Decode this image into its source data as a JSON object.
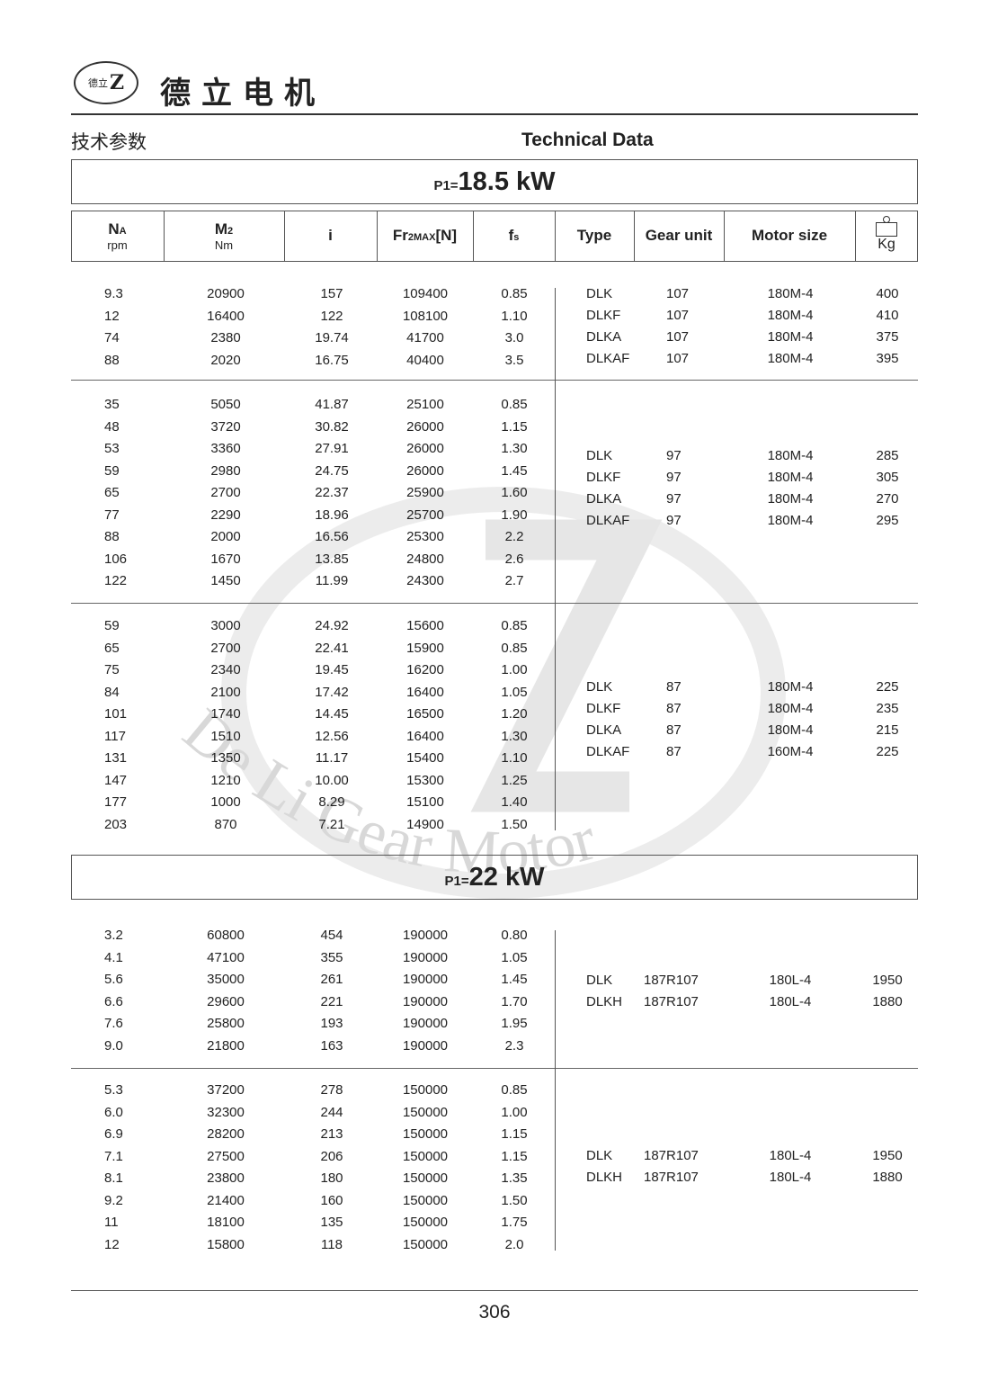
{
  "header": {
    "logo_text": "De Li Gear Motor",
    "logo_chars": "德立",
    "company_name": "德立电机"
  },
  "section": {
    "title_cn": "技术参数",
    "title_en": "Technical Data"
  },
  "columns": {
    "na": "NA",
    "na_sub": "A",
    "na_main": "N",
    "na_unit": "rpm",
    "m2_main": "M",
    "m2_sub": "2",
    "m2_unit": "Nm",
    "i": "i",
    "fr_main": "Fr",
    "fr_sub": "2MAX",
    "fr_unit": "[N]",
    "fs_main": "f",
    "fs_sub": "s",
    "type": "Type",
    "gear_unit": "Gear unit",
    "motor_size": "Motor size",
    "kg": "Kg",
    "weight_icon": "weight-icon"
  },
  "blocks": [
    {
      "power_prefix": "P1=",
      "power_value": "18.5 kW",
      "groups": [
        {
          "rows": [
            [
              "9.3",
              "20900",
              "157",
              "109400",
              "0.85"
            ],
            [
              "12",
              "16400",
              "122",
              "108100",
              "1.10"
            ],
            [
              "74",
              "2380",
              "19.74",
              "41700",
              "3.0"
            ],
            [
              "88",
              "2020",
              "16.75",
              "40400",
              "3.5"
            ]
          ],
          "units": [
            [
              "DLK",
              "107",
              "180M-4",
              "400"
            ],
            [
              "DLKF",
              "107",
              "180M-4",
              "410"
            ],
            [
              "DLKA",
              "107",
              "180M-4",
              "375"
            ],
            [
              "DLKAF",
              "107",
              "180M-4",
              "395"
            ]
          ]
        },
        {
          "rows": [
            [
              "35",
              "5050",
              "41.87",
              "25100",
              "0.85"
            ],
            [
              "48",
              "3720",
              "30.82",
              "26000",
              "1.15"
            ],
            [
              "53",
              "3360",
              "27.91",
              "26000",
              "1.30"
            ],
            [
              "59",
              "2980",
              "24.75",
              "26000",
              "1.45"
            ],
            [
              "65",
              "2700",
              "22.37",
              "25900",
              "1.60"
            ],
            [
              "77",
              "2290",
              "18.96",
              "25700",
              "1.90"
            ],
            [
              "88",
              "2000",
              "16.56",
              "25300",
              "2.2"
            ],
            [
              "106",
              "1670",
              "13.85",
              "24800",
              "2.6"
            ],
            [
              "122",
              "1450",
              "11.99",
              "24300",
              "2.7"
            ]
          ],
          "units": [
            [
              "DLK",
              "97",
              "180M-4",
              "285"
            ],
            [
              "DLKF",
              "97",
              "180M-4",
              "305"
            ],
            [
              "DLKA",
              "97",
              "180M-4",
              "270"
            ],
            [
              "DLKAF",
              "97",
              "180M-4",
              "295"
            ]
          ]
        },
        {
          "rows": [
            [
              "59",
              "3000",
              "24.92",
              "15600",
              "0.85"
            ],
            [
              "65",
              "2700",
              "22.41",
              "15900",
              "0.85"
            ],
            [
              "75",
              "2340",
              "19.45",
              "16200",
              "1.00"
            ],
            [
              "84",
              "2100",
              "17.42",
              "16400",
              "1.05"
            ],
            [
              "101",
              "1740",
              "14.45",
              "16500",
              "1.20"
            ],
            [
              "117",
              "1510",
              "12.56",
              "16400",
              "1.30"
            ],
            [
              "131",
              "1350",
              "11.17",
              "15400",
              "1.10"
            ],
            [
              "147",
              "1210",
              "10.00",
              "15300",
              "1.25"
            ],
            [
              "177",
              "1000",
              "8.29",
              "15100",
              "1.40"
            ],
            [
              "203",
              "870",
              "7.21",
              "14900",
              "1.50"
            ]
          ],
          "units": [
            [
              "DLK",
              "87",
              "180M-4",
              "225"
            ],
            [
              "DLKF",
              "87",
              "180M-4",
              "235"
            ],
            [
              "DLKA",
              "87",
              "180M-4",
              "215"
            ],
            [
              "DLKAF",
              "87",
              "160M-4",
              "225"
            ]
          ]
        }
      ]
    },
    {
      "power_prefix": "P1=",
      "power_value": "22 kW",
      "groups": [
        {
          "rows": [
            [
              "3.2",
              "60800",
              "454",
              "190000",
              "0.80"
            ],
            [
              "4.1",
              "47100",
              "355",
              "190000",
              "1.05"
            ],
            [
              "5.6",
              "35000",
              "261",
              "190000",
              "1.45"
            ],
            [
              "6.6",
              "29600",
              "221",
              "190000",
              "1.70"
            ],
            [
              "7.6",
              "25800",
              "193",
              "190000",
              "1.95"
            ],
            [
              "9.0",
              "21800",
              "163",
              "190000",
              "2.3"
            ]
          ],
          "units": [
            [
              "DLK",
              "187R107",
              "180L-4",
              "1950"
            ],
            [
              "DLKH",
              "187R107",
              "180L-4",
              "1880"
            ]
          ]
        },
        {
          "rows": [
            [
              "5.3",
              "37200",
              "278",
              "150000",
              "0.85"
            ],
            [
              "6.0",
              "32300",
              "244",
              "150000",
              "1.00"
            ],
            [
              "6.9",
              "28200",
              "213",
              "150000",
              "1.15"
            ],
            [
              "7.1",
              "27500",
              "206",
              "150000",
              "1.15"
            ],
            [
              "8.1",
              "23800",
              "180",
              "150000",
              "1.35"
            ],
            [
              "9.2",
              "21400",
              "160",
              "150000",
              "1.50"
            ],
            [
              "11",
              "18100",
              "135",
              "150000",
              "1.75"
            ],
            [
              "12",
              "15800",
              "118",
              "150000",
              "2.0"
            ]
          ],
          "units": [
            [
              "DLK",
              "187R107",
              "180L-4",
              "1950"
            ],
            [
              "DLKH",
              "187R107",
              "180L-4",
              "1880"
            ]
          ]
        }
      ]
    }
  ],
  "footer": {
    "page_number": "306"
  }
}
